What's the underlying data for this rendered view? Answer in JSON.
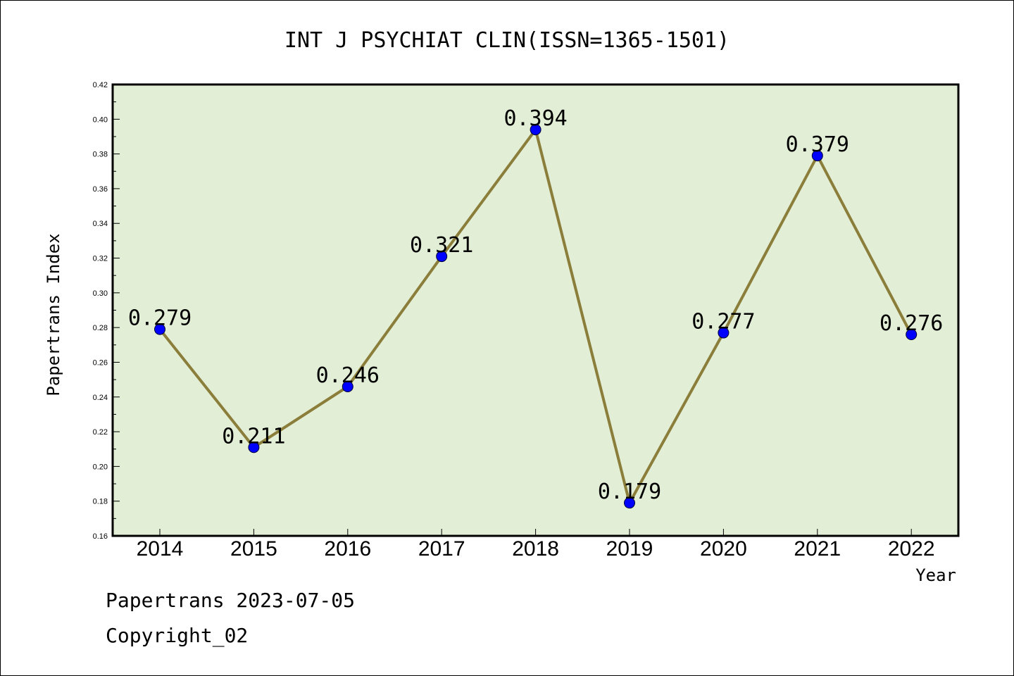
{
  "chart_data": {
    "type": "line",
    "title": "INT J PSYCHIAT CLIN(ISSN=1365-1501)",
    "xlabel": "Year",
    "ylabel": "Papertrans Index",
    "categories": [
      "2014",
      "2015",
      "2016",
      "2017",
      "2018",
      "2019",
      "2020",
      "2021",
      "2022"
    ],
    "values": [
      0.279,
      0.211,
      0.246,
      0.321,
      0.394,
      0.179,
      0.277,
      0.379,
      0.276
    ],
    "data_labels": [
      "0.279",
      "0.211",
      "0.246",
      "0.321",
      "0.394",
      "0.179",
      "0.277",
      "0.379",
      "0.276"
    ],
    "ylim": [
      0.16,
      0.42
    ],
    "yticks": [
      "0.16",
      "0.18",
      "0.20",
      "0.22",
      "0.24",
      "0.26",
      "0.28",
      "0.30",
      "0.32",
      "0.34",
      "0.36",
      "0.38",
      "0.40",
      "0.42"
    ],
    "grid": false,
    "colors": {
      "plot_background": "#e2efd6",
      "line": "#8b7d3a",
      "marker": "#0000ff"
    }
  },
  "footer": {
    "line1": "Papertrans 2023-07-05",
    "line2": "Copyright_02"
  }
}
